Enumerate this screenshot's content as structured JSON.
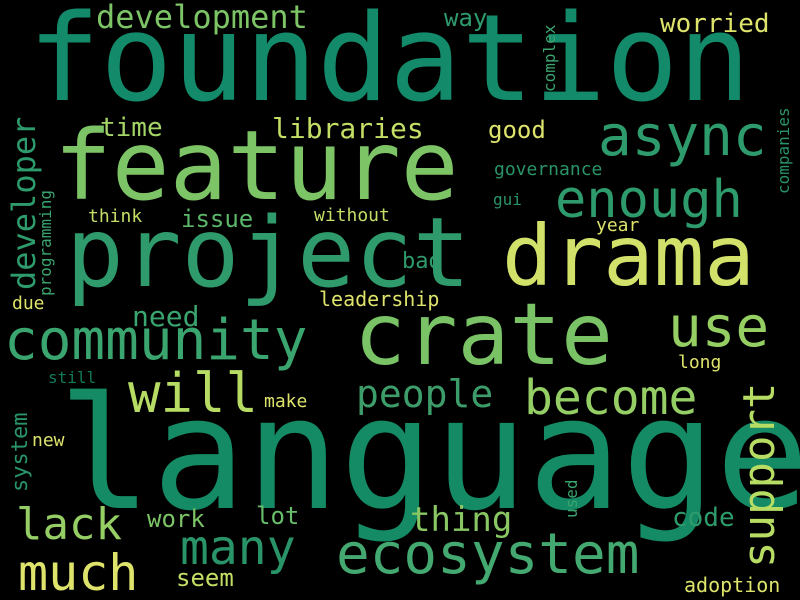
{
  "background": "#000000",
  "palette": {
    "deep_green": "#148a65",
    "mid_green": "#3aa56f",
    "green": "#5bb86a",
    "light_green": "#8ccb64",
    "yellow_green": "#b7dc63",
    "yellow": "#dde36b"
  },
  "words": [
    {
      "text": "language",
      "color": "#148a65"
    },
    {
      "text": "foundation",
      "color": "#138a6a"
    },
    {
      "text": "feature",
      "color": "#7cc466"
    },
    {
      "text": "project",
      "color": "#2f9a6c"
    },
    {
      "text": "drama",
      "color": "#d2e16a"
    },
    {
      "text": "crate",
      "color": "#79c265"
    },
    {
      "text": "community",
      "color": "#3aa56f"
    },
    {
      "text": "ecosystem",
      "color": "#43a970"
    },
    {
      "text": "async",
      "color": "#2e9b6c"
    },
    {
      "text": "enough",
      "color": "#2e9b6c"
    },
    {
      "text": "use",
      "color": "#95cf63"
    },
    {
      "text": "will",
      "color": "#b7dc63"
    },
    {
      "text": "become",
      "color": "#94ce64"
    },
    {
      "text": "many",
      "color": "#2a9469"
    },
    {
      "text": "much",
      "color": "#dde36b"
    },
    {
      "text": "lack",
      "color": "#94ce64"
    },
    {
      "text": "support",
      "color": "#b7dc63"
    },
    {
      "text": "people",
      "color": "#3d9d6a"
    },
    {
      "text": "development",
      "color": "#7cc466"
    },
    {
      "text": "developer",
      "color": "#2e9b6c"
    },
    {
      "text": "libraries",
      "color": "#c3df66"
    },
    {
      "text": "thing",
      "color": "#88c763"
    },
    {
      "text": "need",
      "color": "#3aa56f"
    },
    {
      "text": "time",
      "color": "#a3d567"
    },
    {
      "text": "code",
      "color": "#2e9b6c"
    },
    {
      "text": "worried",
      "color": "#dde36b"
    },
    {
      "text": "good",
      "color": "#dde36b"
    },
    {
      "text": "work",
      "color": "#7cc466"
    },
    {
      "text": "lot",
      "color": "#67bd69"
    },
    {
      "text": "seem",
      "color": "#c3df66"
    },
    {
      "text": "way",
      "color": "#2e9b6c"
    },
    {
      "text": "issue",
      "color": "#5bb86a"
    },
    {
      "text": "system",
      "color": "#2a9469"
    },
    {
      "text": "bad",
      "color": "#2e9b6c"
    },
    {
      "text": "governance",
      "color": "#2a9469"
    },
    {
      "text": "leadership",
      "color": "#dde36b"
    },
    {
      "text": "without",
      "color": "#c3df66"
    },
    {
      "text": "think",
      "color": "#c3df66"
    },
    {
      "text": "year",
      "color": "#dde36b"
    },
    {
      "text": "programming",
      "color": "#3aa56f"
    },
    {
      "text": "adoption",
      "color": "#dde36b"
    },
    {
      "text": "companies",
      "color": "#2a9469"
    },
    {
      "text": "complex",
      "color": "#3aa56f"
    },
    {
      "text": "long",
      "color": "#dde36b"
    },
    {
      "text": "new",
      "color": "#dde36b"
    },
    {
      "text": "make",
      "color": "#dde36b"
    },
    {
      "text": "still",
      "color": "#0f7a5a"
    },
    {
      "text": "due",
      "color": "#dde36b"
    },
    {
      "text": "used",
      "color": "#3aa56f"
    },
    {
      "text": "gui",
      "color": "#2a9469"
    }
  ]
}
